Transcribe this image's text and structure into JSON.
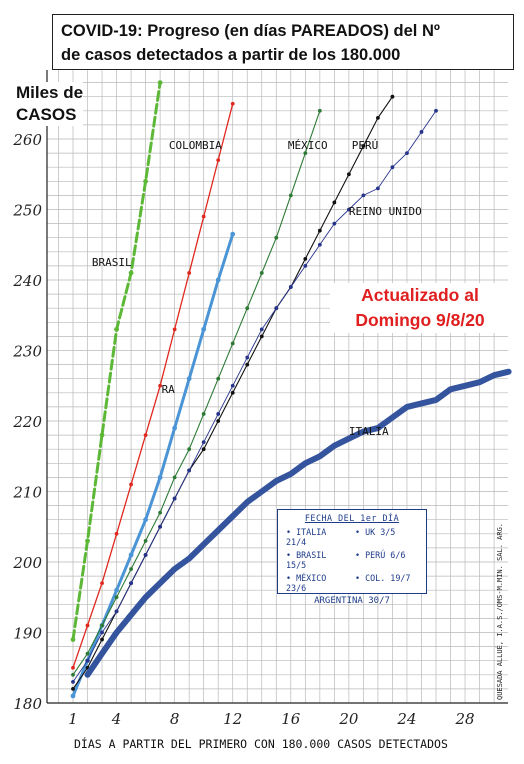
{
  "title": {
    "line1_prefix": "COVID-19:",
    "line1_rest": " Progreso (en días PAREADOS) del Nº",
    "line2": "de casos detectados a partir de los 180.000"
  },
  "ylabel_line1": "Miles de",
  "ylabel_line2": "CASOS",
  "xlabel": "DÍAS A PARTIR DEL PRIMERO CON 180.000 CASOS DETECTADOS",
  "update_line1": "Actualizado al",
  "update_line2": "Domingo 9/8/20",
  "legend": {
    "title": "FECHA DEL 1er DÍA",
    "entries": [
      "• ITALIA 21/4",
      "• UK 3/5",
      "• BRASIL 15/5",
      "• PERÚ 6/6",
      "• MÉXICO 23/6",
      "• COL. 19/7"
    ],
    "last": "ARGENTINA 30/7"
  },
  "credit": "QUESADA ALLUÉ, I.A.S./OMS-M.MIN. SAL. ARG.",
  "chart_data": {
    "type": "line",
    "xlabel": "DÍAS A PARTIR DEL PRIMERO CON 180.000 CASOS DETECTADOS",
    "ylabel": "Miles de CASOS",
    "xlim": [
      0,
      32
    ],
    "ylim": [
      180,
      268
    ],
    "x_ticks": [
      1,
      4,
      8,
      12,
      16,
      20,
      24,
      28
    ],
    "y_ticks": [
      180,
      190,
      200,
      210,
      220,
      230,
      240,
      250,
      260
    ],
    "grid": true,
    "series": [
      {
        "name": "BRASIL",
        "label": "BRASIL",
        "color": "#5cb836",
        "width": 3,
        "dashed": true,
        "label_pos": [
          2.3,
          242
        ],
        "points": [
          [
            1,
            189
          ],
          [
            2,
            203
          ],
          [
            3,
            218
          ],
          [
            4,
            233
          ],
          [
            5,
            241
          ],
          [
            6,
            254
          ],
          [
            7,
            268
          ]
        ]
      },
      {
        "name": "COLOMBIA",
        "label": "COLOMBIA",
        "color": "#e0281e",
        "width": 1.3,
        "label_pos": [
          7.6,
          258.6
        ],
        "points": [
          [
            1,
            185
          ],
          [
            2,
            191
          ],
          [
            3,
            197
          ],
          [
            4,
            204
          ],
          [
            5,
            211
          ],
          [
            6,
            218
          ],
          [
            7,
            225
          ],
          [
            8,
            233
          ],
          [
            9,
            241
          ],
          [
            10,
            249
          ],
          [
            11,
            257
          ],
          [
            12,
            265
          ]
        ]
      },
      {
        "name": "RA",
        "label": "RA",
        "color": "#4b94d6",
        "width": 3,
        "label_pos": [
          7.1,
          224
        ],
        "points": [
          [
            1,
            181
          ],
          [
            2,
            186
          ],
          [
            3,
            191
          ],
          [
            4,
            196
          ],
          [
            5,
            201
          ],
          [
            6,
            206
          ],
          [
            7,
            212
          ],
          [
            8,
            219
          ],
          [
            9,
            226
          ],
          [
            10,
            233
          ],
          [
            11,
            240
          ],
          [
            12,
            246.5
          ]
        ]
      },
      {
        "name": "MÉXICO",
        "label": "MÉXICO",
        "color": "#2d7a35",
        "width": 1.1,
        "label_pos": [
          15.8,
          258.6
        ],
        "points": [
          [
            1,
            184
          ],
          [
            2,
            187
          ],
          [
            3,
            191
          ],
          [
            4,
            195
          ],
          [
            5,
            199
          ],
          [
            6,
            203
          ],
          [
            7,
            207
          ],
          [
            8,
            212
          ],
          [
            9,
            216
          ],
          [
            10,
            221
          ],
          [
            11,
            226
          ],
          [
            12,
            231
          ],
          [
            13,
            236
          ],
          [
            14,
            241
          ],
          [
            15,
            246
          ],
          [
            16,
            252
          ],
          [
            17,
            258
          ],
          [
            18,
            264
          ]
        ]
      },
      {
        "name": "PERÚ",
        "label": "PERÚ",
        "color": "#111111",
        "width": 1.1,
        "label_pos": [
          20.2,
          258.6
        ],
        "points": [
          [
            1,
            182
          ],
          [
            2,
            185
          ],
          [
            3,
            189
          ],
          [
            4,
            193
          ],
          [
            5,
            197
          ],
          [
            6,
            201
          ],
          [
            7,
            205
          ],
          [
            8,
            209
          ],
          [
            9,
            213
          ],
          [
            10,
            216
          ],
          [
            11,
            220
          ],
          [
            12,
            224
          ],
          [
            13,
            228
          ],
          [
            14,
            232
          ],
          [
            15,
            236
          ],
          [
            16,
            239
          ],
          [
            17,
            243
          ],
          [
            18,
            247
          ],
          [
            19,
            251
          ],
          [
            20,
            255
          ],
          [
            21,
            259
          ],
          [
            22,
            263
          ],
          [
            23,
            266
          ]
        ]
      },
      {
        "name": "REINO UNIDO",
        "label": "REINO UNIDO",
        "color": "#26348c",
        "width": 0.9,
        "label_pos": [
          20.0,
          249.2
        ],
        "points": [
          [
            1,
            183
          ],
          [
            2,
            186
          ],
          [
            3,
            190
          ],
          [
            4,
            193
          ],
          [
            5,
            197
          ],
          [
            6,
            201
          ],
          [
            7,
            205
          ],
          [
            8,
            209
          ],
          [
            9,
            213
          ],
          [
            10,
            217
          ],
          [
            11,
            221
          ],
          [
            12,
            225
          ],
          [
            13,
            229
          ],
          [
            14,
            233
          ],
          [
            15,
            236
          ],
          [
            16,
            239
          ],
          [
            17,
            242
          ],
          [
            18,
            245
          ],
          [
            19,
            248
          ],
          [
            20,
            250
          ],
          [
            21,
            252
          ],
          [
            22,
            253
          ],
          [
            23,
            256
          ],
          [
            24,
            258
          ],
          [
            25,
            261
          ],
          [
            26,
            264
          ]
        ]
      },
      {
        "name": "ITALIA",
        "label": "ITALIA",
        "color": "#35549e",
        "width": 6,
        "label_pos": [
          20.0,
          218
        ],
        "points": [
          [
            2,
            184
          ],
          [
            3,
            187
          ],
          [
            4,
            190
          ],
          [
            5,
            192.5
          ],
          [
            6,
            195
          ],
          [
            7,
            197
          ],
          [
            8,
            199
          ],
          [
            9,
            200.5
          ],
          [
            10,
            202.5
          ],
          [
            11,
            204.5
          ],
          [
            12,
            206.5
          ],
          [
            13,
            208.5
          ],
          [
            14,
            210
          ],
          [
            15,
            211.5
          ],
          [
            16,
            212.5
          ],
          [
            17,
            214
          ],
          [
            18,
            215
          ],
          [
            19,
            216.5
          ],
          [
            20,
            217.5
          ],
          [
            21,
            218.5
          ],
          [
            22,
            219
          ],
          [
            23,
            220.5
          ],
          [
            24,
            222
          ],
          [
            25,
            222.5
          ],
          [
            26,
            223
          ],
          [
            27,
            224.5
          ],
          [
            28,
            225
          ],
          [
            29,
            225.5
          ],
          [
            30,
            226.5
          ],
          [
            31,
            227
          ]
        ]
      }
    ]
  }
}
